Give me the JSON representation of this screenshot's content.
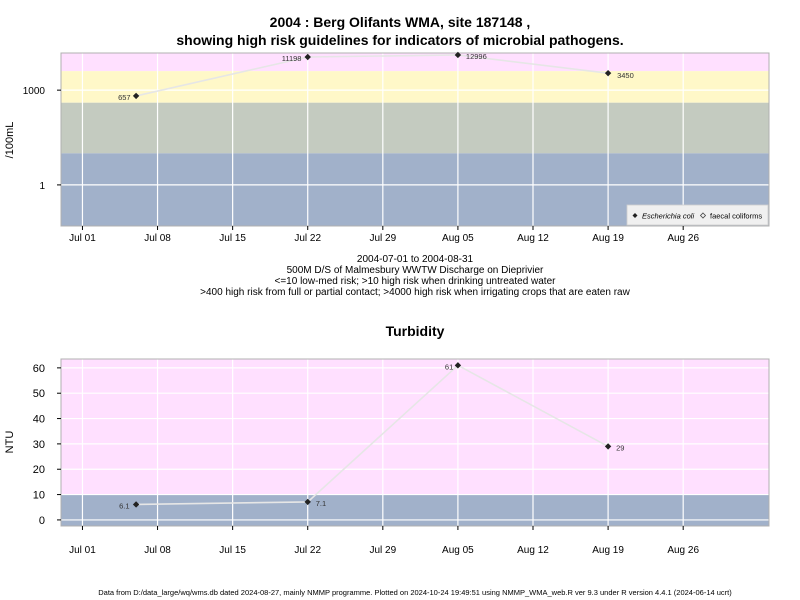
{
  "colors": {
    "band_pink": "#ffe0ff",
    "band_yellow": "#fff8c8",
    "band_sage": "#c4cbc0",
    "band_blue": "#a1b1ca",
    "grid": "#ffffff",
    "line": "#e6e6e6",
    "point": "#222222"
  },
  "header": {
    "title_line1": "2004 : Berg Olifants WMA, site 187148 ,",
    "title_line2": "showing high risk guidelines for indicators of microbial pathogens."
  },
  "subtitle": {
    "date_range": "2004-07-01 to 2004-08-31",
    "site_desc": "500M D/S of Malmesbury WWTW Discharge on Dieprivier",
    "risk_line1": "<=10 low-med risk; >10 high risk when drinking untreated water",
    "risk_line2": ">400 high risk from full or partial contact; >4000 high risk when irrigating crops that are eaten raw"
  },
  "chart2_title": "Turbidity",
  "footer": "Data from D:/data_large/wq/wms.db dated 2024-08-27, mainly NMMP programme. Plotted on 2024-10-24 19:49:51 using NMMP_WMA_web.R ver 9.3 under R version 4.4.1 (2024-06-14 ucrt)",
  "chart_data": [
    {
      "type": "line",
      "scale": "log",
      "ylabel": "/100mL",
      "x_dates": [
        "2004-07-06",
        "2004-07-22",
        "2004-08-05",
        "2004-08-19"
      ],
      "series": [
        {
          "name": "Escherichia coli",
          "values": [
            657,
            11198,
            12996,
            3450
          ]
        }
      ],
      "legend": [
        "Escherichia coli",
        "faecal coliforms"
      ],
      "legend_position": "bottom-right",
      "data_labels": [
        "657",
        "11198",
        "12996",
        "3450"
      ],
      "yticks": [
        1,
        1000
      ],
      "ytick_labels": [
        "1",
        "1000"
      ],
      "ylim": [
        0.05,
        15000
      ],
      "xlim": [
        "2004-06-29",
        "2004-09-03"
      ],
      "xticks": [
        "2004-07-01",
        "2004-07-08",
        "2004-07-15",
        "2004-07-22",
        "2004-07-29",
        "2004-08-05",
        "2004-08-12",
        "2004-08-19",
        "2004-08-26"
      ],
      "xtick_labels": [
        "Jul 01",
        "Jul 08",
        "Jul 15",
        "Jul 22",
        "Jul 29",
        "Aug 05",
        "Aug 12",
        "Aug 19",
        "Aug 26"
      ],
      "bands": [
        {
          "from": 4000,
          "to": 15000,
          "color": "band_pink"
        },
        {
          "from": 400,
          "to": 4000,
          "color": "band_yellow"
        },
        {
          "from": 10,
          "to": 400,
          "color": "band_sage"
        },
        {
          "from": 0.05,
          "to": 10,
          "color": "band_blue"
        }
      ],
      "grid": true
    },
    {
      "type": "line",
      "scale": "linear",
      "title": "Turbidity",
      "ylabel": "NTU",
      "x_dates": [
        "2004-07-06",
        "2004-07-22",
        "2004-08-05",
        "2004-08-19"
      ],
      "series": [
        {
          "values": [
            6.1,
            7.1,
            61,
            29
          ]
        }
      ],
      "data_labels": [
        "6.1",
        "7.1",
        "61",
        "29"
      ],
      "yticks": [
        0,
        10,
        20,
        30,
        40,
        50,
        60
      ],
      "ytick_labels": [
        "0",
        "10",
        "20",
        "30",
        "40",
        "50",
        "60"
      ],
      "ylim": [
        -2.4,
        63.5
      ],
      "xlim": [
        "2004-06-29",
        "2004-09-03"
      ],
      "xticks": [
        "2004-07-01",
        "2004-07-08",
        "2004-07-15",
        "2004-07-22",
        "2004-07-29",
        "2004-08-05",
        "2004-08-12",
        "2004-08-19",
        "2004-08-26"
      ],
      "xtick_labels": [
        "Jul 01",
        "Jul 08",
        "Jul 15",
        "Jul 22",
        "Jul 29",
        "Aug 05",
        "Aug 12",
        "Aug 19",
        "Aug 26"
      ],
      "bands": [
        {
          "from": 10,
          "to": 63.5,
          "color": "band_pink"
        },
        {
          "from": -2.4,
          "to": 10,
          "color": "band_blue"
        }
      ],
      "grid": true
    }
  ]
}
